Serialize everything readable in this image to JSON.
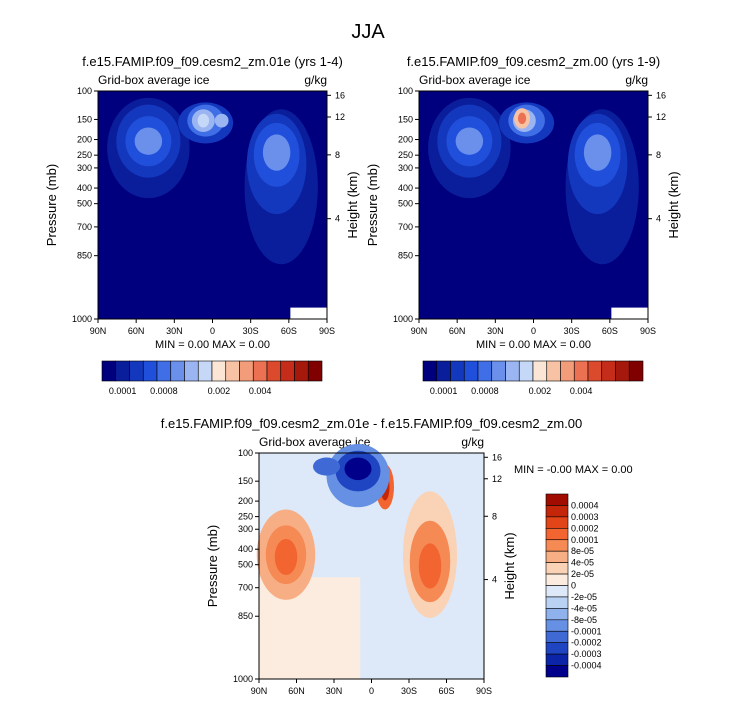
{
  "chart_data": {
    "title": "JJA",
    "type": "heatmap",
    "panels": [
      {
        "id": "p1",
        "title": "f.e15.FAMIP.f09_f09.cesm2_zm.01e (yrs 1-4)",
        "left_label": "Grid-box average ice",
        "right_label": "g/kg",
        "ylabel": "Pressure (mb)",
        "ylabel_right": "Height (km)",
        "pressure_ticks": [
          "100",
          "150",
          "200",
          "250",
          "300",
          "400",
          "500",
          "700",
          "850",
          "1000"
        ],
        "height_ticks": [
          "16",
          "12",
          "8",
          "4"
        ],
        "x_ticks": [
          "90N",
          "60N",
          "30N",
          "0",
          "30S",
          "60S",
          "90S"
        ],
        "min_max": "MIN =   0.00   MAX =   0.00"
      },
      {
        "id": "p2",
        "title": "f.e15.FAMIP.f09_f09.cesm2_zm.00 (yrs 1-9)",
        "left_label": "Grid-box average ice",
        "right_label": "g/kg",
        "ylabel": "Pressure (mb)",
        "ylabel_right": "Height (km)",
        "pressure_ticks": [
          "100",
          "150",
          "200",
          "250",
          "300",
          "400",
          "500",
          "700",
          "850",
          "1000"
        ],
        "height_ticks": [
          "16",
          "12",
          "8",
          "4"
        ],
        "x_ticks": [
          "90N",
          "60N",
          "30N",
          "0",
          "30S",
          "60S",
          "90S"
        ],
        "min_max": "MIN =   0.00   MAX =   0.00"
      },
      {
        "id": "p3",
        "title": "f.e15.FAMIP.f09_f09.cesm2_zm.01e - f.e15.FAMIP.f09_f09.cesm2_zm.00",
        "left_label": "Grid-box average ice",
        "right_label": "g/kg",
        "ylabel": "Pressure (mb)",
        "ylabel_right": "Height (km)",
        "pressure_ticks": [
          "100",
          "150",
          "200",
          "250",
          "300",
          "400",
          "500",
          "700",
          "850",
          "1000"
        ],
        "height_ticks": [
          "16",
          "12",
          "8",
          "4"
        ],
        "x_ticks": [
          "90N",
          "60N",
          "30N",
          "0",
          "30S",
          "60S",
          "90S"
        ],
        "min_max": "MIN =  -0.00   MAX =   0.00"
      }
    ],
    "colorbar_top": {
      "labels": [
        "0.0001",
        "0.0008",
        "0.002",
        "0.004"
      ],
      "colors": [
        "#00007f",
        "#0a1e9c",
        "#1438bd",
        "#2050db",
        "#3f6ee6",
        "#6a90ec",
        "#9bb5f2",
        "#c6d8f7",
        "#fbe6d6",
        "#f8c2a4",
        "#f39c7a",
        "#eb7152",
        "#dc4a2e",
        "#c52d1a",
        "#a5180c",
        "#800000"
      ]
    },
    "colorbar_diff": {
      "labels": [
        "0.0004",
        "0.0003",
        "0.0002",
        "0.0001",
        "8e-05",
        "4e-05",
        "2e-05",
        "0",
        "-2e-05",
        "-4e-05",
        "-8e-05",
        "-0.0001",
        "-0.0002",
        "-0.0003",
        "-0.0004"
      ],
      "colors": [
        "#a00d00",
        "#c4260a",
        "#e14518",
        "#f26530",
        "#f58a55",
        "#f8ae84",
        "#fad2b5",
        "#fcece0",
        "#dde9f8",
        "#b9d1f3",
        "#90b2ec",
        "#6690e3",
        "#3f6ad6",
        "#1f45c2",
        "#0c25a8",
        "#00008b"
      ]
    }
  }
}
